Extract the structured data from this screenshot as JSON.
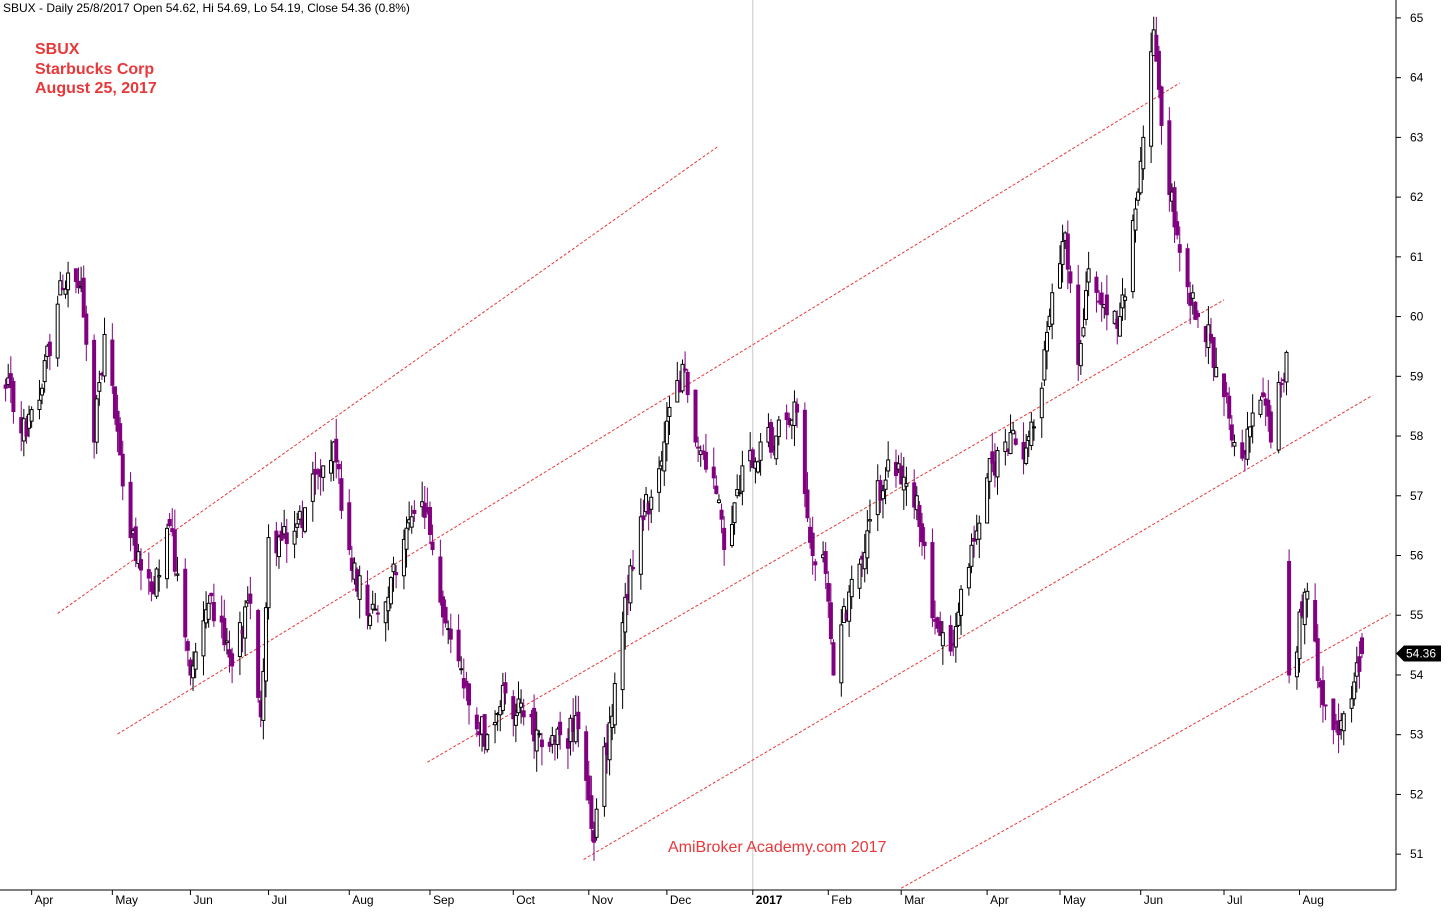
{
  "header": {
    "text": "SBUX - Daily 25/8/2017 Open 54.62, Hi 54.69, Lo 54.19, Close 54.36 (0.8%)"
  },
  "annotation": {
    "symbol": "SBUX",
    "company": "Starbucks Corp",
    "date": "August 25, 2017"
  },
  "watermark": "AmiBroker Academy.com  2017",
  "last_price_label": "54.36",
  "colors": {
    "up": "#000000",
    "down": "#800080",
    "channel": "#e8383a",
    "label": "#e8383a",
    "last_bg": "#000000"
  },
  "chart_data": {
    "type": "candlestick",
    "ylim": [
      50.4,
      65.3
    ],
    "yticks": [
      51,
      52,
      53,
      54,
      55,
      56,
      57,
      58,
      59,
      60,
      61,
      62,
      63,
      64,
      65
    ],
    "ytick_labels": [
      "51",
      "52",
      "53",
      "54",
      "55",
      "56",
      "57",
      "58",
      "59",
      "60",
      "61",
      "62",
      "63",
      "64",
      "65"
    ],
    "xtick_labels": [
      "Apr",
      "May",
      "Jun",
      "Jul",
      "Aug",
      "Sep",
      "Oct",
      "Nov",
      "Dec",
      "2017",
      "Feb",
      "Mar",
      "Apr",
      "May",
      "Jun",
      "Jul",
      "Aug"
    ],
    "xtick_dates": [
      "2016-04-01",
      "2016-05-02",
      "2016-06-01",
      "2016-07-01",
      "2016-08-01",
      "2016-09-01",
      "2016-10-03",
      "2016-11-01",
      "2016-12-01",
      "2017-01-03",
      "2017-02-01",
      "2017-03-01",
      "2017-04-03",
      "2017-05-01",
      "2017-06-01",
      "2017-07-03",
      "2017-08-01"
    ],
    "grid_x": [
      "2017-01-03"
    ],
    "last_close": 54.36,
    "anchors": [
      {
        "date": "2016-03-22",
        "close": 58.8
      },
      {
        "date": "2016-03-30",
        "close": 58.0
      },
      {
        "date": "2016-04-05",
        "close": 58.8
      },
      {
        "date": "2016-04-12",
        "close": 60.6
      },
      {
        "date": "2016-04-20",
        "close": 60.5
      },
      {
        "date": "2016-04-25",
        "close": 57.9
      },
      {
        "date": "2016-04-29",
        "close": 59.7
      },
      {
        "date": "2016-05-03",
        "close": 58.3
      },
      {
        "date": "2016-05-09",
        "close": 56.3
      },
      {
        "date": "2016-05-17",
        "close": 55.4
      },
      {
        "date": "2016-05-24",
        "close": 56.5
      },
      {
        "date": "2016-06-01",
        "close": 54.0
      },
      {
        "date": "2016-06-08",
        "close": 55.2
      },
      {
        "date": "2016-06-16",
        "close": 54.3
      },
      {
        "date": "2016-06-24",
        "close": 55.2
      },
      {
        "date": "2016-06-28",
        "close": 53.3
      },
      {
        "date": "2016-07-01",
        "close": 56.3
      },
      {
        "date": "2016-07-08",
        "close": 56.2
      },
      {
        "date": "2016-07-15",
        "close": 56.8
      },
      {
        "date": "2016-07-22",
        "close": 57.5
      },
      {
        "date": "2016-07-26",
        "close": 57.9
      },
      {
        "date": "2016-08-01",
        "close": 56.1
      },
      {
        "date": "2016-08-08",
        "close": 55.0
      },
      {
        "date": "2016-08-16",
        "close": 55.3
      },
      {
        "date": "2016-08-24",
        "close": 56.6
      },
      {
        "date": "2016-08-29",
        "close": 56.9
      },
      {
        "date": "2016-09-02",
        "close": 56.1
      },
      {
        "date": "2016-09-09",
        "close": 54.6
      },
      {
        "date": "2016-09-16",
        "close": 53.5
      },
      {
        "date": "2016-09-23",
        "close": 53.0
      },
      {
        "date": "2016-09-30",
        "close": 53.7
      },
      {
        "date": "2016-10-07",
        "close": 53.3
      },
      {
        "date": "2016-10-14",
        "close": 52.8
      },
      {
        "date": "2016-10-21",
        "close": 53.0
      },
      {
        "date": "2016-10-28",
        "close": 53.1
      },
      {
        "date": "2016-11-03",
        "close": 51.2
      },
      {
        "date": "2016-11-09",
        "close": 53.2
      },
      {
        "date": "2016-11-15",
        "close": 55.3
      },
      {
        "date": "2016-11-22",
        "close": 56.6
      },
      {
        "date": "2016-11-30",
        "close": 57.9
      },
      {
        "date": "2016-12-07",
        "close": 59.2
      },
      {
        "date": "2016-12-12",
        "close": 57.9
      },
      {
        "date": "2016-12-19",
        "close": 57.3
      },
      {
        "date": "2016-12-23",
        "close": 56.1
      },
      {
        "date": "2016-12-30",
        "close": 57.5
      },
      {
        "date": "2017-01-06",
        "close": 57.9
      },
      {
        "date": "2017-01-12",
        "close": 58.0
      },
      {
        "date": "2017-01-20",
        "close": 58.4
      },
      {
        "date": "2017-01-26",
        "close": 56.0
      },
      {
        "date": "2017-01-31",
        "close": 55.7
      },
      {
        "date": "2017-02-03",
        "close": 54.0
      },
      {
        "date": "2017-02-10",
        "close": 55.6
      },
      {
        "date": "2017-02-17",
        "close": 56.6
      },
      {
        "date": "2017-02-24",
        "close": 57.6
      },
      {
        "date": "2017-03-01",
        "close": 57.2
      },
      {
        "date": "2017-03-07",
        "close": 57.0
      },
      {
        "date": "2017-03-14",
        "close": 54.9
      },
      {
        "date": "2017-03-20",
        "close": 54.4
      },
      {
        "date": "2017-03-27",
        "close": 55.8
      },
      {
        "date": "2017-04-03",
        "close": 57.3
      },
      {
        "date": "2017-04-10",
        "close": 57.9
      },
      {
        "date": "2017-04-18",
        "close": 57.8
      },
      {
        "date": "2017-04-24",
        "close": 58.8
      },
      {
        "date": "2017-04-28",
        "close": 60.4
      },
      {
        "date": "2017-05-03",
        "close": 61.4
      },
      {
        "date": "2017-05-08",
        "close": 59.2
      },
      {
        "date": "2017-05-12",
        "close": 60.8
      },
      {
        "date": "2017-05-18",
        "close": 60.2
      },
      {
        "date": "2017-05-24",
        "close": 60.0
      },
      {
        "date": "2017-05-30",
        "close": 61.8
      },
      {
        "date": "2017-06-02",
        "close": 63.0
      },
      {
        "date": "2017-06-06",
        "close": 64.8
      },
      {
        "date": "2017-06-09",
        "close": 63.2
      },
      {
        "date": "2017-06-14",
        "close": 61.5
      },
      {
        "date": "2017-06-19",
        "close": 60.5
      },
      {
        "date": "2017-06-23",
        "close": 60.0
      },
      {
        "date": "2017-06-28",
        "close": 59.6
      },
      {
        "date": "2017-07-05",
        "close": 58.3
      },
      {
        "date": "2017-07-11",
        "close": 57.7
      },
      {
        "date": "2017-07-17",
        "close": 58.6
      },
      {
        "date": "2017-07-21",
        "close": 57.9
      },
      {
        "date": "2017-07-27",
        "close": 59.4
      },
      {
        "date": "2017-07-28",
        "close": 54.0
      },
      {
        "date": "2017-08-04",
        "close": 55.4
      },
      {
        "date": "2017-08-09",
        "close": 53.8
      },
      {
        "date": "2017-08-16",
        "close": 53.0
      },
      {
        "date": "2017-08-21",
        "close": 53.6
      },
      {
        "date": "2017-08-25",
        "close": 54.36
      }
    ],
    "channels": [
      {
        "start": {
          "date": "2016-04-11",
          "value": 55.03
        },
        "end": {
          "date": "2016-12-21",
          "value": 62.86
        }
      },
      {
        "start": {
          "date": "2016-05-04",
          "value": 53.01
        },
        "end": {
          "date": "2017-06-16",
          "value": 63.91
        }
      },
      {
        "start": {
          "date": "2016-08-31",
          "value": 52.54
        },
        "end": {
          "date": "2017-07-03",
          "value": 60.28
        }
      },
      {
        "start": {
          "date": "2016-10-30",
          "value": 50.91
        },
        "end": {
          "date": "2017-08-29",
          "value": 58.68
        }
      },
      {
        "start": {
          "date": "2017-03-01",
          "value": 50.43
        },
        "end": {
          "date": "2017-09-05",
          "value": 55.03
        }
      }
    ]
  }
}
